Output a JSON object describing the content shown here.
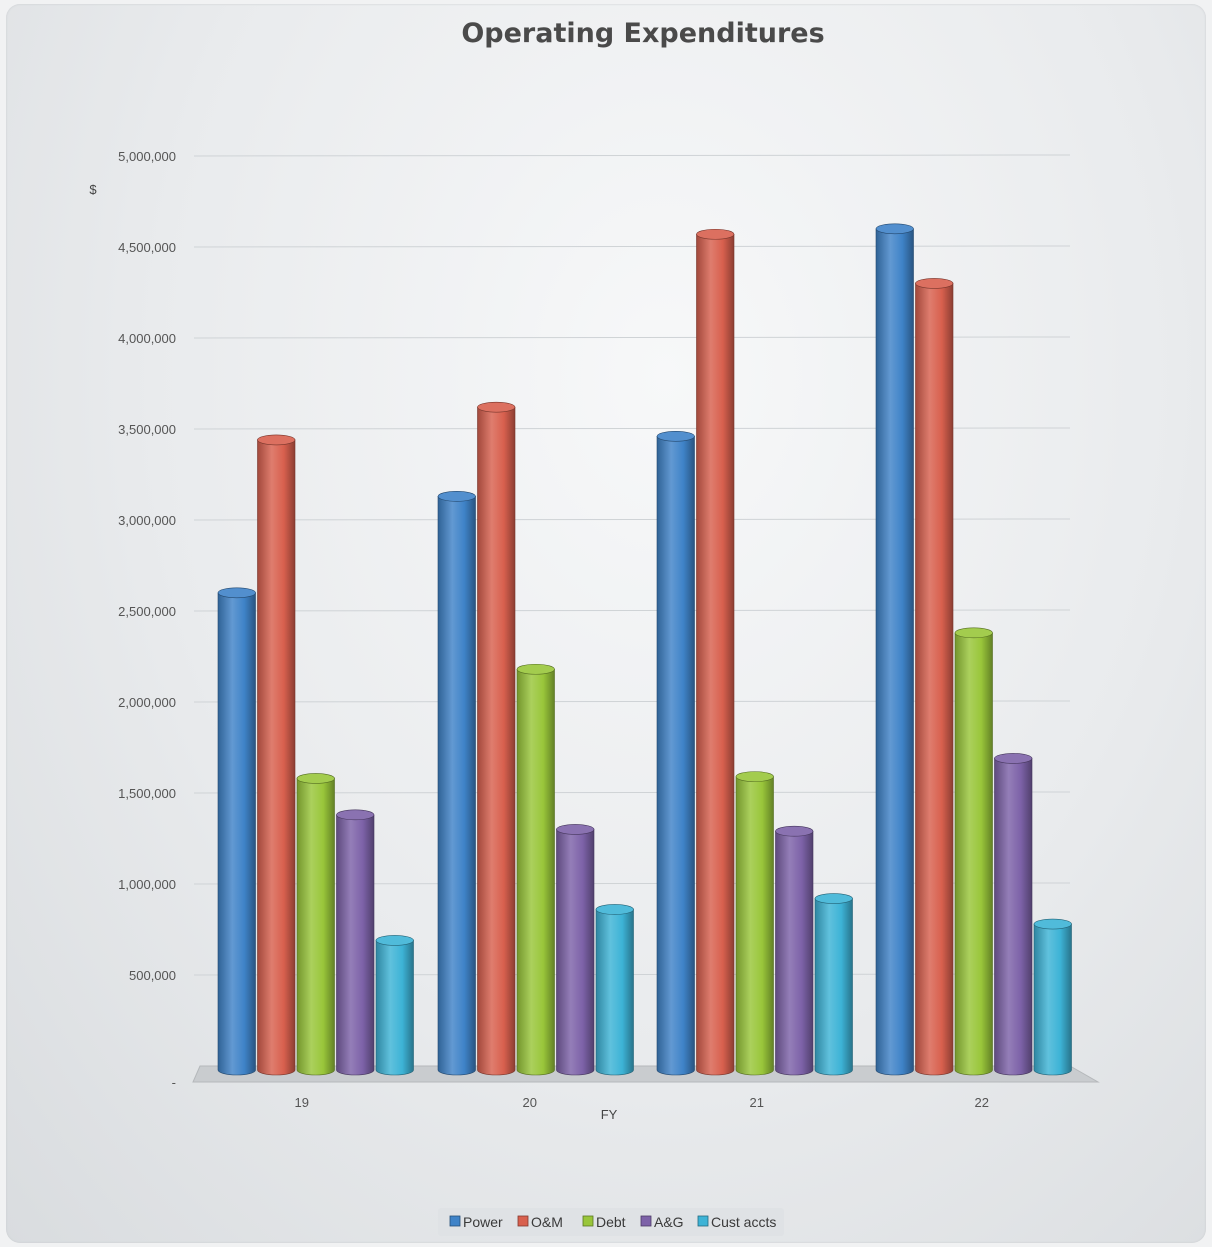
{
  "chart_data": {
    "type": "bar",
    "title": "Operating Expenditures",
    "xlabel": "FY",
    "ylabel": "$",
    "categories": [
      "19",
      "20",
      "21",
      "22"
    ],
    "ylim": [
      0,
      5000000
    ],
    "yticks": [
      0,
      500000,
      1000000,
      1500000,
      2000000,
      2500000,
      3000000,
      3500000,
      4000000,
      4500000,
      5000000
    ],
    "ytick_labels": [
      "-",
      "500,000",
      "1,000,000",
      "1,500,000",
      "2,000,000",
      "2,500,000",
      "3,000,000",
      "3,500,000",
      "4,000,000",
      "4,500,000",
      "5,000,000"
    ],
    "grid": true,
    "legend_position": "bottom",
    "series": [
      {
        "name": "Power",
        "color": "#3f83c8",
        "values": [
          2600000,
          3130000,
          3460000,
          4600000
        ]
      },
      {
        "name": "O&M",
        "color": "#d8604e",
        "values": [
          3440000,
          3620000,
          4570000,
          4300000
        ]
      },
      {
        "name": "Debt",
        "color": "#99c63a",
        "values": [
          1580000,
          2180000,
          1590000,
          2380000
        ]
      },
      {
        "name": "A&G",
        "color": "#7d62a8",
        "values": [
          1380000,
          1300000,
          1290000,
          1690000
        ]
      },
      {
        "name": "Cust accts",
        "color": "#3db3d6",
        "values": [
          690000,
          860000,
          920000,
          780000
        ]
      }
    ]
  }
}
